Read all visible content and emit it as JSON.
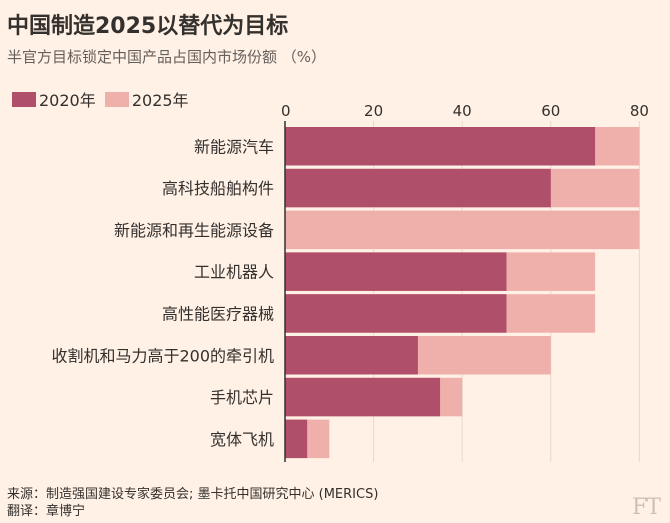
{
  "chart_data": {
    "type": "bar",
    "orientation": "horizontal",
    "stacked": "overlay",
    "title": "中国制造2025以替代为目标",
    "subtitle": "半官方目标锁定中国产品占国内市场份额 （%）",
    "categories": [
      "新能源汽车",
      "高科技船舶构件",
      "新能源和再生能源设备",
      "工业机器人",
      "高性能医疗器械",
      "收割机和马力高于200的牵引机",
      "手机芯片",
      "宽体飞机"
    ],
    "series": [
      {
        "name": "2020年",
        "color": "#b04f6a",
        "values": [
          70,
          60,
          null,
          50,
          50,
          30,
          35,
          5
        ]
      },
      {
        "name": "2025年",
        "color": "#efb0ac",
        "values": [
          80,
          80,
          80,
          70,
          70,
          60,
          40,
          10
        ]
      }
    ],
    "xticks": [
      0,
      20,
      40,
      60,
      80
    ],
    "xlim": [
      0,
      80
    ],
    "xaxis_position": "top",
    "grid": true,
    "legend_position": "top-left"
  },
  "source_line": "来源：制造强国建设专家委员会; 墨卡托中国研究中心 (MERICS)",
  "translator_line": "翻译：章博宁",
  "logo": "FT"
}
